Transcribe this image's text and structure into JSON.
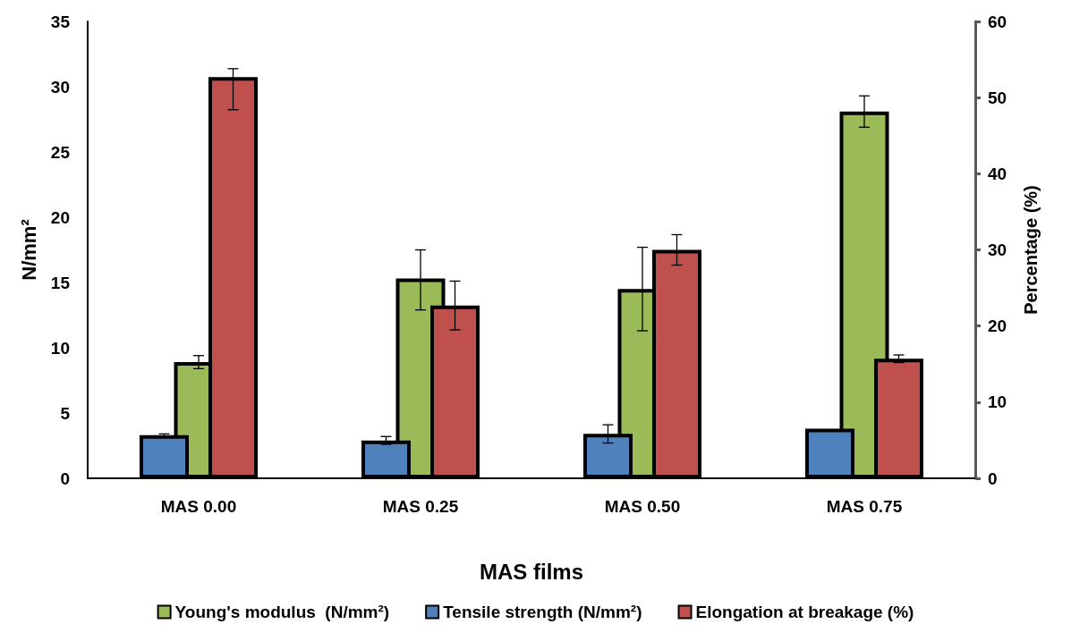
{
  "chart_data": {
    "type": "bar",
    "xlabel": "MAS films",
    "ylabel": "N/mm²",
    "y2label": "Percentage (%)",
    "categories": [
      "MAS 0.00",
      "MAS 0.25",
      "MAS 0.50",
      "MAS 0.75"
    ],
    "series": [
      {
        "name": "Young's modulus  (N/mm²)",
        "color": "#9bbb59",
        "values": [
          8.9,
          15.3,
          14.5,
          28.1
        ],
        "errors": [
          0.5,
          [
            12.9,
            17.5
          ],
          3.2,
          1.2
        ]
      },
      {
        "name": "Tensile strength (N/mm²)",
        "color": "#4f81bd",
        "values": [
          3.3,
          2.9,
          3.4,
          3.8
        ],
        "errors": [
          0.1,
          0.3,
          0.7,
          null
        ]
      },
      {
        "name": "Elongation at breakage (%)",
        "color": "#c0504d",
        "axis": "y2",
        "values": [
          52.7,
          22.7,
          30,
          15.7
        ],
        "errors": [
          [
            48.4,
            53.8
          ],
          3.2,
          2,
          0.5
        ]
      }
    ],
    "ylim": [
      0,
      35
    ],
    "yticks": [
      0,
      5,
      10,
      15,
      20,
      25,
      30,
      35
    ],
    "y2lim": [
      0,
      60
    ],
    "y2ticks": [
      0,
      10,
      20,
      30,
      40,
      50,
      60
    ],
    "grid": false,
    "legend": "bottom"
  }
}
